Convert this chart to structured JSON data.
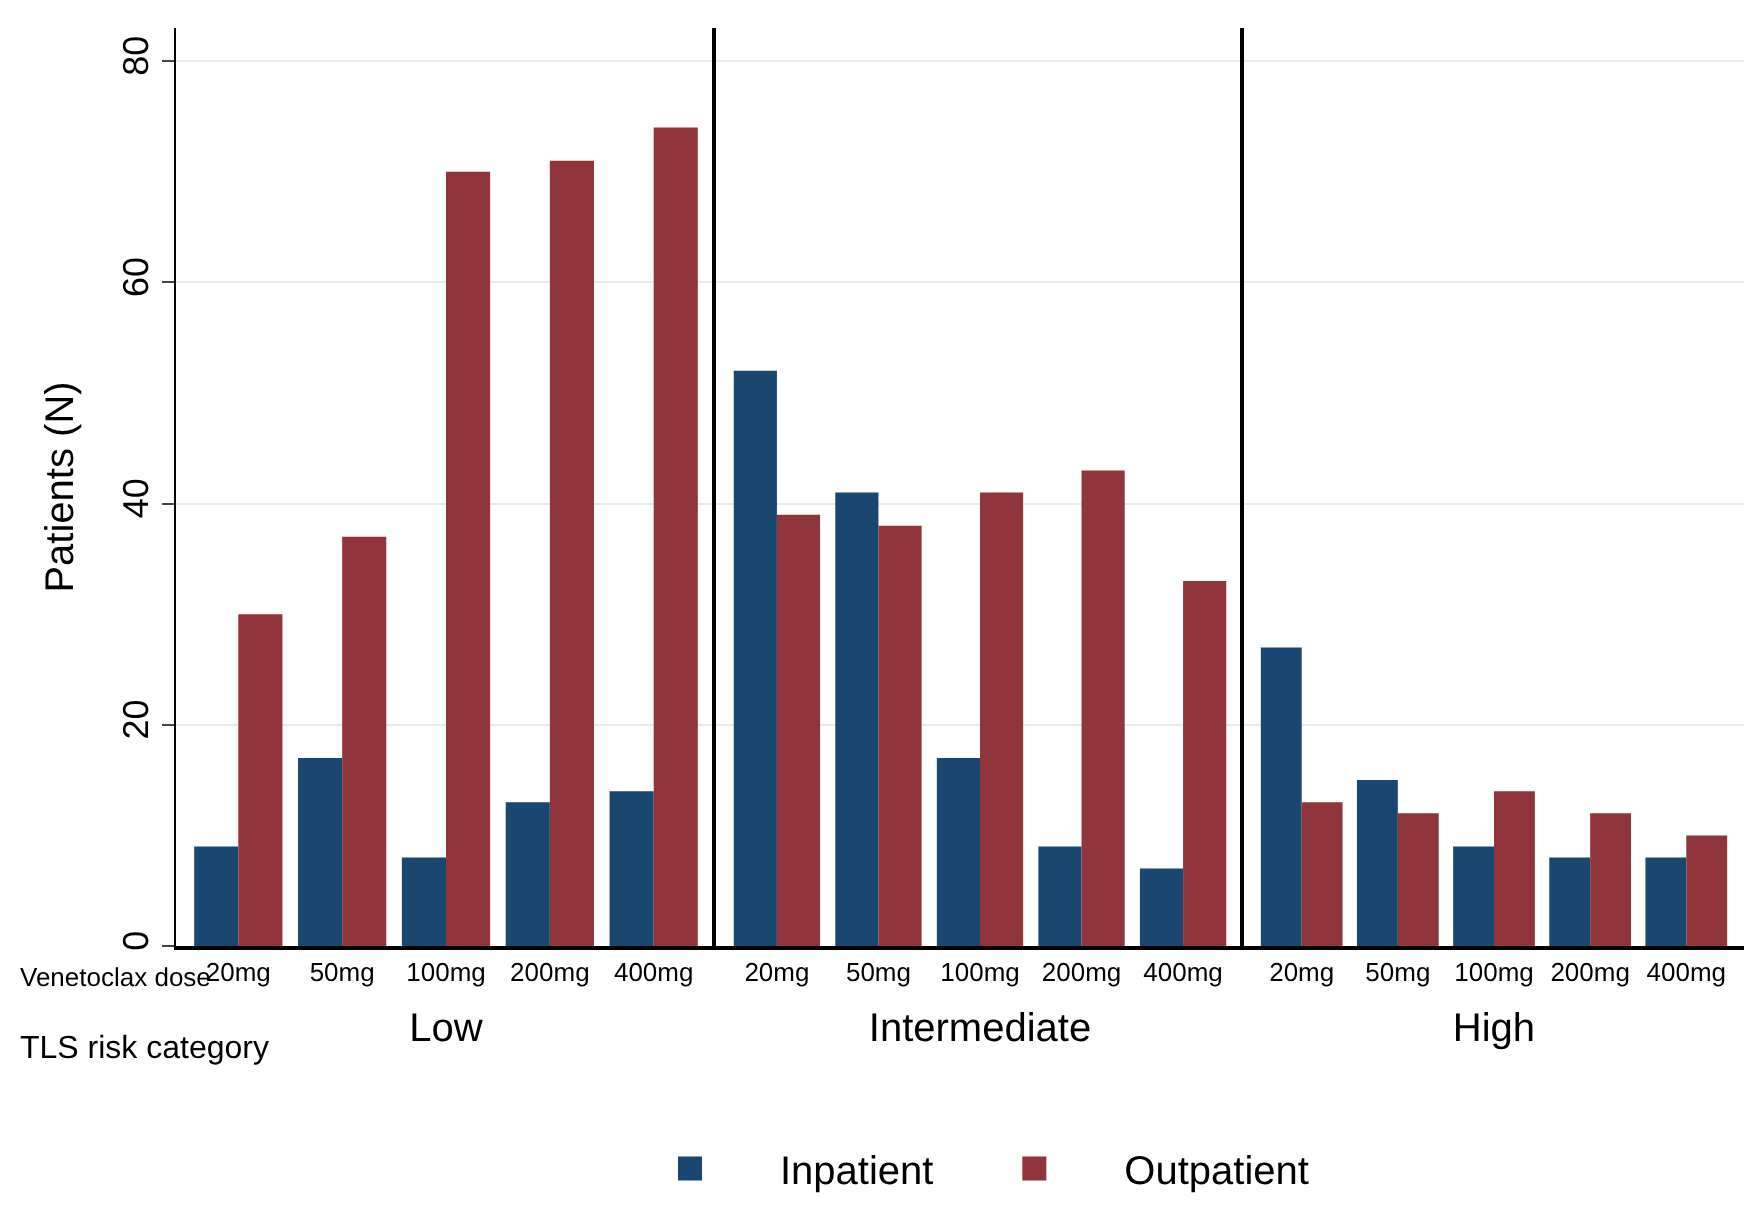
{
  "chart_data": [
    {
      "type": "bar",
      "xlabel": "Low",
      "ylabel": "Patients (N)",
      "categories": [
        "20mg",
        "50mg",
        "100mg",
        "200mg",
        "400mg"
      ],
      "ylim": [
        0,
        83
      ],
      "yticks": [
        0,
        20,
        40,
        60,
        80
      ],
      "grid": "y",
      "legend": "bottom",
      "annotations": [
        "Venetoclax dose",
        "TLS risk category"
      ],
      "series": [
        {
          "name": "Inpatient",
          "color": "#1a476f",
          "values": [
            9,
            17,
            8,
            13,
            14
          ]
        },
        {
          "name": "Outpatient",
          "color": "#90353b",
          "values": [
            30,
            37,
            70,
            71,
            74
          ]
        }
      ]
    },
    {
      "type": "bar",
      "xlabel": "Intermediate",
      "categories": [
        "20mg",
        "50mg",
        "100mg",
        "200mg",
        "400mg"
      ],
      "ylim": [
        0,
        83
      ],
      "yticks": [
        0,
        20,
        40,
        60,
        80
      ],
      "grid": "y",
      "tick_labels": "x",
      "series": [
        {
          "color": "#1a476f",
          "values": [
            52,
            41,
            17,
            9,
            7
          ]
        },
        {
          "color": "#90353b",
          "values": [
            39,
            38,
            41,
            43,
            33
          ]
        }
      ]
    },
    {
      "type": "bar",
      "xlabel": "High",
      "categories": [
        "20mg",
        "50mg",
        "100mg",
        "200mg",
        "400mg"
      ],
      "ylim": [
        0,
        83
      ],
      "yticks": [
        0,
        20,
        40,
        60,
        80
      ],
      "grid": "y",
      "tick_labels": "x",
      "series": [
        {
          "color": "#1a476f",
          "values": [
            27,
            15,
            9,
            8,
            8
          ]
        },
        {
          "color": "#90353b",
          "values": [
            13,
            12,
            14,
            12,
            10
          ]
        }
      ]
    }
  ]
}
